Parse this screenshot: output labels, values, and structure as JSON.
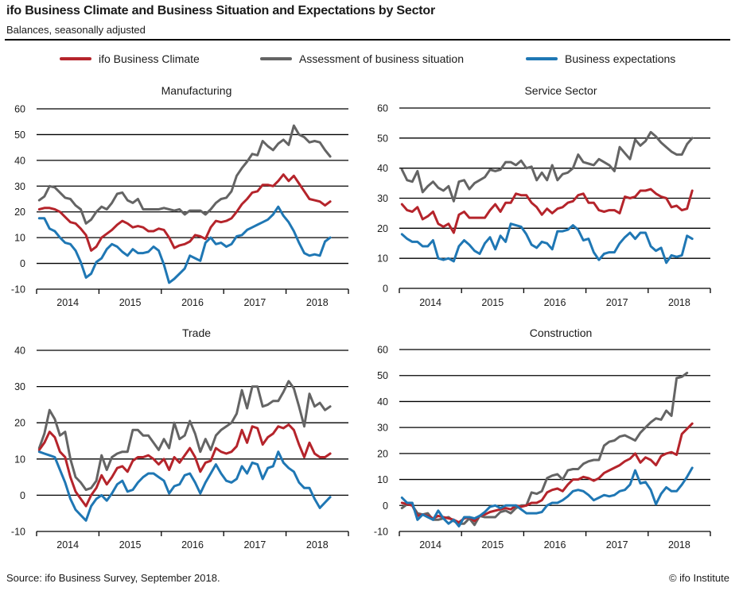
{
  "header": {
    "title": "ifo Business Climate and Business Situation and Expectations by Sector",
    "subtitle": "Balances, seasonally adjusted"
  },
  "legend": [
    {
      "label": "ifo Business Climate",
      "color": "#b5242b"
    },
    {
      "label": "Assessment of business situation",
      "color": "#646464"
    },
    {
      "label": "Business expectations",
      "color": "#1f77b4"
    }
  ],
  "footer": {
    "source": "Source: ifo Business Survey, September 2018.",
    "copyright": "© ifo Institute"
  },
  "chart_data": [
    {
      "type": "line",
      "title": "Manufacturing",
      "x_start": "2014-01",
      "x_end": "2018-09",
      "frequency": "monthly",
      "categories": [
        "2014",
        "2015",
        "2016",
        "2017",
        "2018"
      ],
      "ylim": [
        -10,
        60
      ],
      "yticks": [
        -10,
        0,
        10,
        20,
        30,
        40,
        50,
        60
      ],
      "grid": true,
      "series": [
        {
          "name": "ifo Business Climate",
          "color": "#b5242b",
          "values": [
            21,
            21.5,
            21.5,
            21,
            20,
            18,
            16,
            15.5,
            13.5,
            11,
            5,
            6.5,
            10,
            11.5,
            13,
            15,
            16.5,
            15.5,
            14,
            14.5,
            14,
            12.5,
            12.5,
            13.5,
            13,
            10,
            6,
            7,
            7.5,
            8.5,
            11,
            10.5,
            9.5,
            14,
            16.5,
            16,
            16.5,
            17.5,
            20,
            23,
            25,
            27.5,
            28,
            30.5,
            30.5,
            30,
            32,
            34.5,
            32,
            34,
            31,
            28,
            25,
            24.5,
            24,
            22.5,
            24,
            23.5
          ]
        },
        {
          "name": "Assessment of business situation",
          "color": "#646464",
          "values": [
            24.5,
            26,
            30,
            29.5,
            27.5,
            25.5,
            25,
            22.5,
            21,
            15.5,
            17,
            20,
            22,
            21,
            23.5,
            27,
            27.5,
            24.5,
            23.5,
            25,
            21,
            21,
            21,
            21,
            21.5,
            21,
            20.5,
            21,
            19,
            20.5,
            20.5,
            20.5,
            19,
            21,
            23.5,
            25,
            25.5,
            28,
            34,
            37,
            39.5,
            42.5,
            42,
            47.5,
            45.5,
            44,
            46.5,
            48,
            46,
            53.5,
            50,
            49,
            47,
            47.5,
            47,
            44,
            41.5,
            38
          ]
        },
        {
          "name": "Business expectations",
          "color": "#1f77b4",
          "values": [
            17.5,
            17.5,
            13.5,
            12.5,
            10,
            8,
            7.5,
            5,
            0.5,
            -5.5,
            -4,
            0.5,
            2,
            5.5,
            7.5,
            6.5,
            4.5,
            3,
            5.5,
            4,
            4,
            4.5,
            6.5,
            5,
            -0.5,
            -7.5,
            -6,
            -4,
            -2,
            3,
            2,
            1,
            8,
            10,
            7.5,
            8,
            6.5,
            7.5,
            10.5,
            11,
            13,
            14,
            15,
            16,
            17,
            19,
            22,
            18.5,
            16,
            12.5,
            8,
            4,
            3,
            3.5,
            3,
            8.5,
            10
          ]
        }
      ]
    },
    {
      "type": "line",
      "title": "Service Sector",
      "x_start": "2014-01",
      "x_end": "2018-09",
      "frequency": "monthly",
      "categories": [
        "2014",
        "2015",
        "2016",
        "2017",
        "2018"
      ],
      "ylim": [
        0,
        60
      ],
      "yticks": [
        0,
        10,
        20,
        30,
        40,
        50,
        60
      ],
      "grid": true,
      "series": [
        {
          "name": "ifo Business Climate",
          "color": "#b5242b",
          "values": [
            28,
            26,
            25.5,
            27,
            23,
            24,
            25.5,
            21.5,
            20.5,
            21.5,
            18.5,
            24.5,
            25.5,
            23.5,
            23.5,
            23.5,
            23.5,
            26,
            28,
            25.5,
            28.5,
            28.5,
            31.5,
            31,
            31,
            28.5,
            27,
            24.5,
            26.5,
            25,
            26.5,
            27,
            28.5,
            29,
            31,
            31.5,
            28.5,
            28.5,
            26,
            25.5,
            26,
            26,
            25,
            30.5,
            30,
            30.5,
            32.5,
            32.5,
            33,
            31.5,
            30.5,
            30,
            27,
            27.5,
            26,
            26.5,
            32.5,
            32.5
          ]
        },
        {
          "name": "Assessment of business situation",
          "color": "#646464",
          "values": [
            39.5,
            36,
            35.5,
            39,
            32,
            34,
            35.5,
            33.5,
            32.5,
            34,
            29,
            35.5,
            36,
            33,
            35,
            36,
            37,
            39.5,
            39,
            39.5,
            42,
            42,
            41,
            42.5,
            40,
            40.5,
            36,
            38.5,
            36,
            41,
            36,
            38,
            38.5,
            40,
            44.5,
            42,
            41.5,
            41,
            43,
            42,
            41,
            39,
            47,
            45,
            43,
            49.5,
            47.5,
            49,
            52,
            50.5,
            48.5,
            47,
            45.5,
            44.5,
            44.5,
            48,
            50
          ]
        },
        {
          "name": "Business expectations",
          "color": "#1f77b4",
          "values": [
            18,
            16.5,
            15.5,
            15.5,
            14,
            14,
            16,
            10,
            9.5,
            10,
            9,
            14,
            16,
            14.5,
            12.5,
            11.5,
            15,
            17,
            13,
            17.5,
            15.5,
            21.5,
            21,
            20.5,
            18,
            14.5,
            13.5,
            15.5,
            15,
            13,
            19,
            19,
            19.5,
            21,
            19.5,
            16,
            16.5,
            12,
            9.5,
            11.5,
            12,
            12,
            15,
            17,
            18.5,
            16.5,
            18.5,
            18.5,
            14,
            12.5,
            13.5,
            8.5,
            11,
            10.5,
            11,
            17.5,
            16.5
          ]
        }
      ]
    },
    {
      "type": "line",
      "title": "Trade",
      "x_start": "2014-01",
      "x_end": "2018-09",
      "frequency": "monthly",
      "categories": [
        "2014",
        "2015",
        "2016",
        "2017",
        "2018"
      ],
      "ylim": [
        -10,
        40
      ],
      "yticks": [
        -10,
        0,
        10,
        20,
        30,
        40
      ],
      "grid": true,
      "series": [
        {
          "name": "ifo Business Climate",
          "color": "#b5242b",
          "values": [
            12.5,
            14.5,
            17.5,
            16,
            12,
            10.5,
            5,
            1,
            -1,
            -3,
            0,
            2,
            5.5,
            3,
            5,
            7.5,
            8,
            6.5,
            9.5,
            10.5,
            10.5,
            11,
            10,
            8.5,
            10,
            7,
            10.5,
            9,
            11,
            13,
            10.5,
            6.5,
            9,
            9.5,
            13,
            12,
            11.5,
            12,
            13.5,
            18,
            14.5,
            19,
            18.5,
            14,
            16,
            17,
            19,
            18.5,
            19.5,
            18,
            14,
            10.5,
            14.5,
            11.5,
            10.5,
            10.5,
            11.5
          ]
        },
        {
          "name": "Assessment of business situation",
          "color": "#646464",
          "values": [
            13,
            17,
            23.5,
            21,
            16.5,
            17.5,
            10,
            5,
            3.5,
            1.5,
            2,
            4,
            11,
            7,
            10.5,
            11.5,
            12,
            12,
            18,
            18,
            16.5,
            16.5,
            14.5,
            12.5,
            15.5,
            13,
            20,
            15.5,
            16.5,
            20.5,
            17,
            12,
            15.5,
            12.5,
            16.5,
            18,
            19,
            20,
            22.5,
            29,
            24,
            30,
            30,
            24.5,
            25,
            26,
            26,
            28.5,
            31.5,
            29.5,
            24.5,
            19,
            28,
            24.5,
            25.5,
            23.5,
            24.5
          ]
        },
        {
          "name": "Business expectations",
          "color": "#1f77b4",
          "values": [
            12,
            11.5,
            11,
            10.5,
            7,
            3.5,
            -1,
            -4,
            -5.5,
            -7,
            -3,
            -1,
            0,
            -1.5,
            0.5,
            3,
            4,
            1,
            1.5,
            3.5,
            5,
            6,
            6,
            5,
            4,
            0.5,
            2.5,
            3,
            5.5,
            6,
            3.5,
            0.5,
            3.5,
            6,
            8.5,
            6,
            4,
            3.5,
            4.5,
            8,
            6,
            9,
            8.5,
            4.5,
            7.5,
            8,
            12,
            9,
            7.5,
            6.5,
            3.5,
            2,
            2,
            -1,
            -3.5,
            -2,
            -0.5
          ]
        }
      ]
    },
    {
      "type": "line",
      "title": "Construction",
      "x_start": "2014-01",
      "x_end": "2018-09",
      "frequency": "monthly",
      "categories": [
        "2014",
        "2015",
        "2016",
        "2017",
        "2018"
      ],
      "ylim": [
        -10,
        60
      ],
      "yticks": [
        -10,
        0,
        10,
        20,
        30,
        40,
        50,
        60
      ],
      "grid": true,
      "series": [
        {
          "name": "ifo Business Climate",
          "color": "#b5242b",
          "values": [
            1,
            0.5,
            0,
            -4,
            -3.5,
            -4,
            -5,
            -4,
            -4.5,
            -5,
            -5.5,
            -6.5,
            -5,
            -4.5,
            -6,
            -4,
            -3.5,
            -2.5,
            -2,
            -1.5,
            -1,
            -1.5,
            0,
            -0.5,
            0,
            1,
            1,
            2,
            5,
            6,
            6.5,
            5.5,
            8,
            10,
            10,
            11,
            10.5,
            9.5,
            10.5,
            12.5,
            13.5,
            14.5,
            15.5,
            17,
            18,
            20,
            16.5,
            18.5,
            17.5,
            15.5,
            19,
            20,
            20.5,
            19.5,
            27.5,
            29.5,
            31.5
          ]
        },
        {
          "name": "Assessment of business situation",
          "color": "#646464",
          "values": [
            -1,
            0.5,
            0,
            -3,
            -3.5,
            -3,
            -5.5,
            -5.5,
            -5,
            -4.5,
            -6,
            -7,
            -7,
            -5,
            -7.5,
            -4,
            -4.5,
            -4.5,
            -4.5,
            -2.5,
            -2,
            -3,
            -1,
            0,
            0,
            5,
            4.5,
            5.5,
            10.5,
            11.5,
            12,
            10,
            13.5,
            14,
            14,
            16,
            17,
            17.5,
            17.5,
            23,
            24.5,
            25,
            26.5,
            27,
            26,
            25,
            28,
            30,
            32,
            33.5,
            33,
            36.5,
            34.5,
            49,
            49.5,
            51
          ]
        },
        {
          "name": "Business expectations",
          "color": "#1f77b4",
          "values": [
            3,
            1,
            1,
            -5.5,
            -3.5,
            -4.5,
            -5.5,
            -2,
            -5,
            -7,
            -5.5,
            -8,
            -4.5,
            -4.5,
            -5,
            -4,
            -2.5,
            -0.5,
            0,
            -1,
            0,
            0,
            0,
            -1.5,
            -3,
            -3,
            -3,
            -2.5,
            0,
            1,
            1,
            2,
            3.5,
            5.5,
            6,
            5.5,
            4,
            2,
            3,
            4,
            3.5,
            4,
            5.5,
            6,
            8,
            13.5,
            8.5,
            9,
            6,
            0.5,
            4.5,
            7,
            5.5,
            5.5,
            8,
            11,
            14.5
          ]
        }
      ]
    }
  ]
}
